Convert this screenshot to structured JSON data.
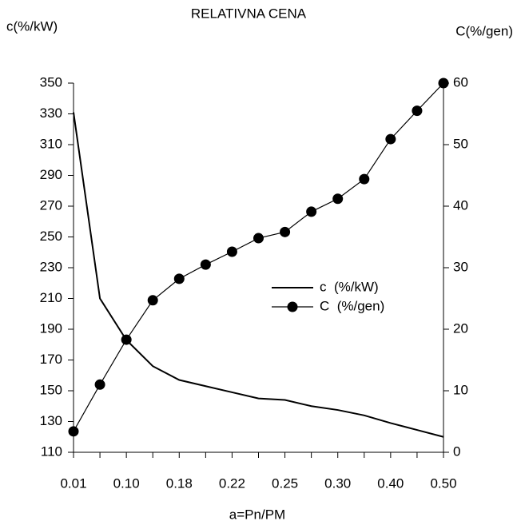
{
  "chart_data": {
    "type": "line",
    "title": "RELATIVNA CENA",
    "y_label": "c(%/kW)",
    "y2_label": "C(%/gen)",
    "x_label": "a=Pn/PM",
    "categories": [
      "0.01",
      null,
      "0.10",
      null,
      "0.18",
      null,
      "0.22",
      null,
      "0.25",
      null,
      "0.30",
      null,
      "0.40",
      null,
      "0.50"
    ],
    "series": [
      {
        "name": "c  (%/kW)",
        "color": "#000000",
        "markers": false,
        "values": [
          331,
          210,
          183,
          166,
          157,
          153,
          149,
          145,
          144,
          140,
          137.5,
          134,
          129,
          124.5,
          120
        ]
      },
      {
        "name": "C  (%/gen)",
        "color": "#000000",
        "markers": true,
        "axis": "y2",
        "values": [
          3.4,
          11.0,
          18.3,
          24.7,
          28.2,
          30.5,
          32.6,
          34.8,
          35.8,
          39.1,
          41.2,
          44.4,
          50.9,
          55.5,
          60
        ]
      }
    ],
    "ylim": [
      110,
      350
    ],
    "yticks": [
      110,
      130,
      150,
      170,
      190,
      210,
      230,
      250,
      270,
      290,
      310,
      330,
      350
    ],
    "y2lim": [
      0,
      60
    ],
    "y2ticks": [
      0,
      10,
      20,
      30,
      40,
      50,
      60
    ],
    "grid": false,
    "legend": "center-right"
  }
}
